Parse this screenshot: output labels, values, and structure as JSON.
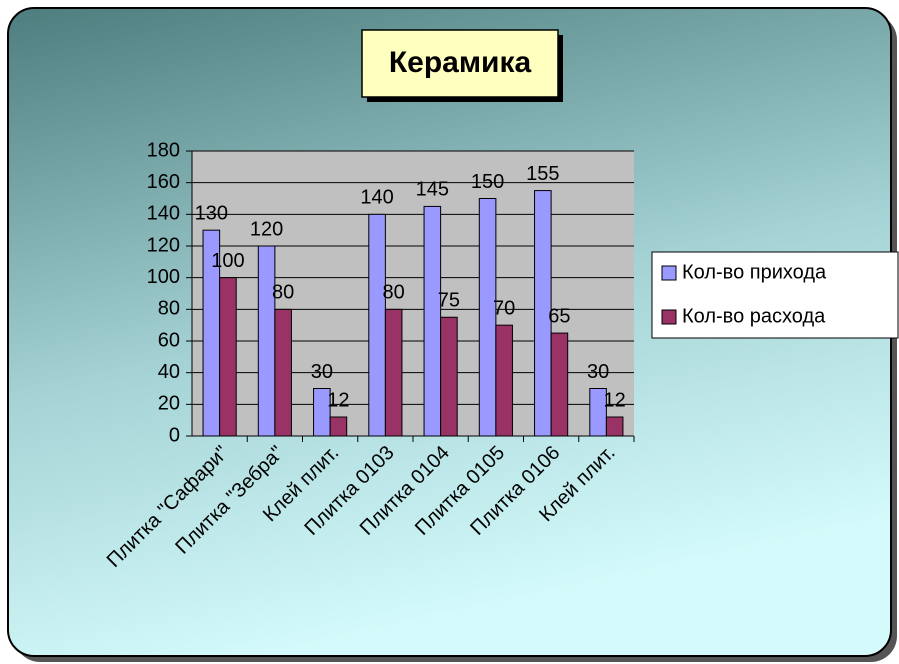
{
  "chart_data": {
    "type": "bar",
    "title": "Керамика",
    "categories": [
      "Плитка \"Сафари\"",
      "Плитка \"Зебра\"",
      "Клей плит.",
      "Плитка 0103",
      "Плитка 0104",
      "Плитка 0105",
      "Плитка 0106",
      "Клей плит."
    ],
    "series": [
      {
        "name": "Кол-во прихода",
        "color": "#9999ff",
        "values": [
          130,
          120,
          30,
          140,
          145,
          150,
          155,
          30
        ]
      },
      {
        "name": "Кол-во расхода",
        "color": "#993366",
        "values": [
          100,
          80,
          12,
          80,
          75,
          70,
          65,
          12
        ]
      }
    ],
    "ylim": [
      0,
      180
    ],
    "yticks": [
      0,
      20,
      40,
      60,
      80,
      100,
      120,
      140,
      160,
      180
    ],
    "grid": true,
    "legend": "right"
  }
}
